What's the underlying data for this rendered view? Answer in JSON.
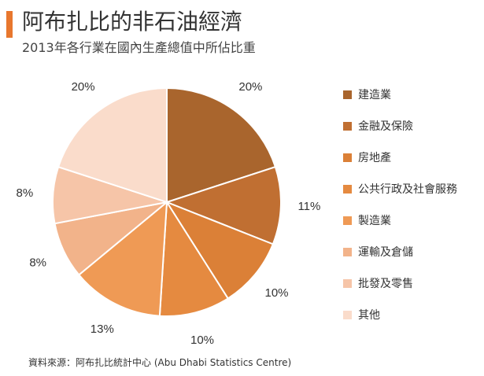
{
  "chart_data": {
    "type": "pie",
    "title": "阿布扎比的非石油經濟",
    "subtitle": "2013年各行業在國內生產總值中所佔比重",
    "source": "資料來源：阿布扎比統計中心 (Abu Dhabi Statistics Centre)",
    "categories": [
      "建造業",
      "金融及保險",
      "房地產",
      "公共行政及社會服務",
      "製造業",
      "運輸及倉儲",
      "批發及零售",
      "其他"
    ],
    "values": [
      20,
      11,
      10,
      10,
      13,
      8,
      8,
      20
    ],
    "value_labels": [
      "20%",
      "11%",
      "10%",
      "10%",
      "13%",
      "8%",
      "8%",
      "20%"
    ],
    "colors": [
      "#a9652d",
      "#c06f32",
      "#db8037",
      "#e58a40",
      "#ef9a55",
      "#f2b38a",
      "#f6c5a8",
      "#fadccb"
    ],
    "legend": "right",
    "start": "top, clockwise"
  }
}
